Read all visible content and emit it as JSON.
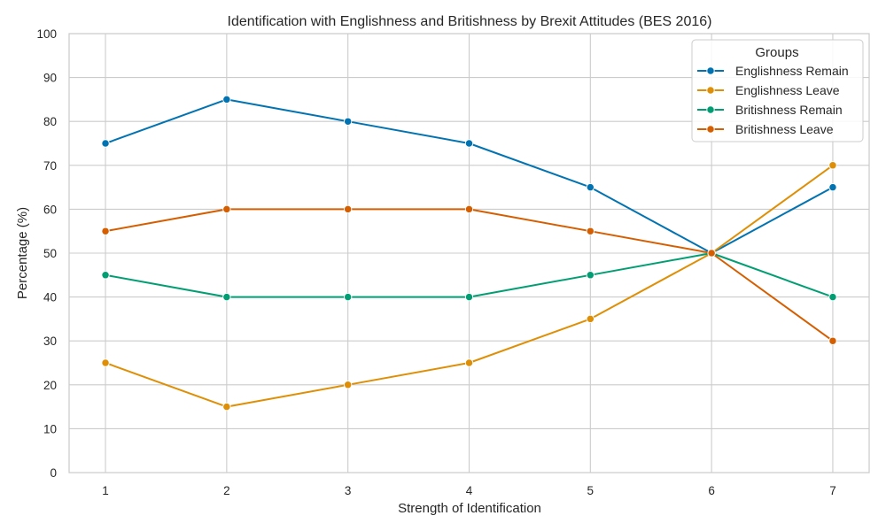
{
  "chart_data": {
    "type": "line",
    "title": "Identification with Englishness and Britishness by Brexit Attitudes (BES 2016)",
    "xlabel": "Strength of Identification",
    "ylabel": "Percentage (%)",
    "x": [
      1,
      2,
      3,
      4,
      5,
      6,
      7
    ],
    "xlim": [
      0.7,
      7.3
    ],
    "ylim": [
      0,
      100
    ],
    "yticks": [
      0,
      10,
      20,
      30,
      40,
      50,
      60,
      70,
      80,
      90,
      100
    ],
    "grid": true,
    "legend": {
      "title": "Groups",
      "position": "top-right"
    },
    "series": [
      {
        "name": "Englishness Remain",
        "color": "#0173b2",
        "values": [
          75,
          85,
          80,
          75,
          65,
          50,
          65
        ]
      },
      {
        "name": "Englishness Leave",
        "color": "#de8f05",
        "values": [
          25,
          15,
          20,
          25,
          35,
          50,
          70
        ]
      },
      {
        "name": "Britishness Remain",
        "color": "#029e73",
        "values": [
          45,
          40,
          40,
          40,
          45,
          50,
          40
        ]
      },
      {
        "name": "Britishness Leave",
        "color": "#d55e00",
        "values": [
          55,
          60,
          60,
          60,
          55,
          50,
          30
        ]
      }
    ]
  }
}
